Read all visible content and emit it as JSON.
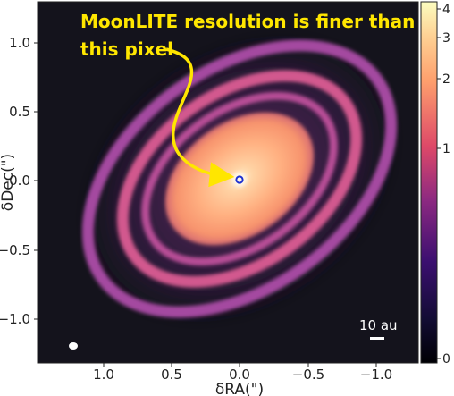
{
  "annotation": {
    "line1": "MoonLITE resolution is finer than",
    "line2": "this pixel"
  },
  "axes": {
    "xlabel": "δRA(\")",
    "ylabel": "δDec(\")",
    "x_ticks": [
      "1.0",
      "0.5",
      "0.0",
      "−0.5",
      "−1.0"
    ],
    "y_ticks": [
      "1.0",
      "0.5",
      "0.0",
      "−0.5",
      "−1.0"
    ]
  },
  "colorbar": {
    "ticks": [
      "4",
      "3",
      "2",
      "1",
      "0"
    ]
  },
  "scale_bar": {
    "label": "10 au"
  },
  "colors": {
    "background": "#14131c",
    "annotation": "#ffe600",
    "ring_outer": "#a44aa0",
    "ring_inner": "#d2588e",
    "disk_core": "#ffb081",
    "marker": "#1b2fd0"
  }
}
